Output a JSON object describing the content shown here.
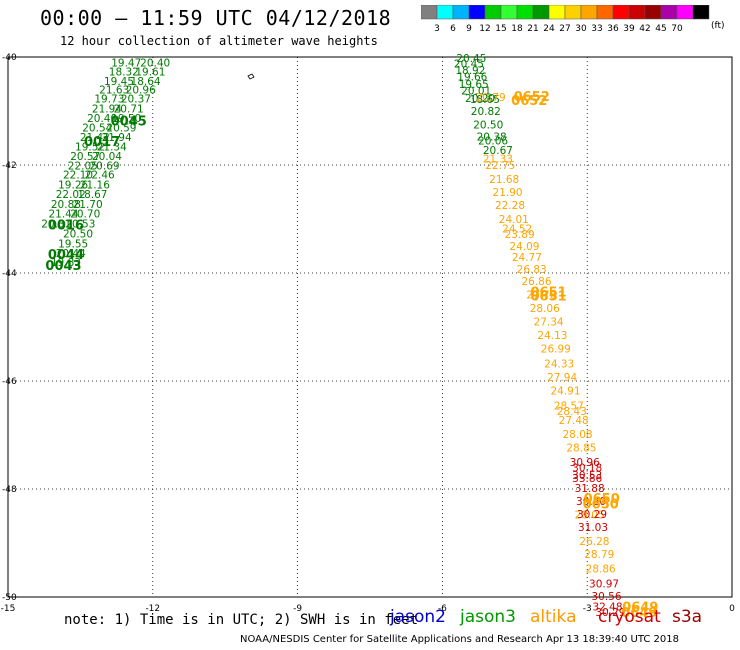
{
  "header": {
    "title": "00:00 – 11:59 UTC 04/12/2018",
    "subtitle": "12 hour collection of altimeter wave heights"
  },
  "legend": {
    "colors": [
      "#808080",
      "#00ffff",
      "#00b3ff",
      "#0000ff",
      "#00cc00",
      "#33ff33",
      "#00e000",
      "#009900",
      "#ffff00",
      "#ffd000",
      "#ffa500",
      "#ff6600",
      "#ff0000",
      "#cc0000",
      "#990000",
      "#aa00aa",
      "#ff00ff",
      "#000000"
    ],
    "tick_labels": [
      "3",
      "6",
      "9",
      "12",
      "15",
      "18",
      "21",
      "24",
      "27",
      "30",
      "33",
      "36",
      "39",
      "42",
      "45",
      "70"
    ],
    "unit": "(ft)"
  },
  "footer": {
    "note": "note: 1) Time is in UTC; 2) SWH is in feet",
    "satellites": [
      {
        "name": "jason2",
        "color": "#0000cc"
      },
      {
        "name": "jason3",
        "color": "#009900"
      },
      {
        "name": "altika",
        "color": "#ff9900"
      },
      {
        "name": "cryosat",
        "color": "#cc0000"
      },
      {
        "name": "s3a",
        "color": "#990000"
      }
    ],
    "credit": "NOAA/NESDIS Center for Satellite Applications and Research    Apr 13 18:39:40 UTC 2018"
  },
  "chart_data": {
    "type": "scatter",
    "title": "00:00 – 11:59 UTC 04/12/2018",
    "xlim": [
      -15,
      0
    ],
    "ylim": [
      -50,
      -40
    ],
    "x_ticks": [
      "-15",
      "-12",
      "-9",
      "-6",
      "-3",
      "0"
    ],
    "y_ticks": [
      "-40",
      "-42",
      "-44",
      "-46",
      "-48",
      "-50"
    ],
    "grid": true,
    "series": [
      {
        "name": "jason3",
        "color": "#007a00",
        "points": [
          {
            "x": -12.55,
            "y": -40.1,
            "label": "19.47"
          },
          {
            "x": -11.95,
            "y": -40.1,
            "label": "20.40"
          },
          {
            "x": -12.6,
            "y": -40.27,
            "label": "18.32"
          },
          {
            "x": -12.05,
            "y": -40.27,
            "label": "19.61"
          },
          {
            "x": -12.7,
            "y": -40.44,
            "label": "19.45"
          },
          {
            "x": -12.15,
            "y": -40.44,
            "label": "18.64"
          },
          {
            "x": -12.8,
            "y": -40.6,
            "label": "21.63"
          },
          {
            "x": -12.25,
            "y": -40.6,
            "label": "20.96"
          },
          {
            "x": -12.9,
            "y": -40.77,
            "label": "19.73"
          },
          {
            "x": -12.35,
            "y": -40.77,
            "label": "20.37"
          },
          {
            "x": -12.95,
            "y": -40.95,
            "label": "21.94"
          },
          {
            "x": -12.5,
            "y": -40.95,
            "label": "20.71"
          },
          {
            "x": -13.05,
            "y": -41.13,
            "label": "20.40"
          },
          {
            "x": -12.55,
            "y": -41.13,
            "label": "19.50"
          },
          {
            "x": -13.15,
            "y": -41.31,
            "label": "20.54"
          },
          {
            "x": -12.65,
            "y": -41.31,
            "label": "20.59"
          },
          {
            "x": -13.2,
            "y": -41.48,
            "label": "21.42"
          },
          {
            "x": -12.75,
            "y": -41.48,
            "label": "21.94"
          },
          {
            "x": -13.3,
            "y": -41.66,
            "label": "19.52"
          },
          {
            "x": -12.85,
            "y": -41.66,
            "label": "21.34"
          },
          {
            "x": -13.4,
            "y": -41.83,
            "label": "20.57"
          },
          {
            "x": -12.95,
            "y": -41.83,
            "label": "20.04"
          },
          {
            "x": -13.45,
            "y": -42.01,
            "label": "22.05"
          },
          {
            "x": -13.0,
            "y": -42.01,
            "label": "20.69"
          },
          {
            "x": -13.55,
            "y": -42.18,
            "label": "22.10"
          },
          {
            "x": -13.1,
            "y": -42.18,
            "label": "22.46"
          },
          {
            "x": -13.65,
            "y": -42.36,
            "label": "19.26"
          },
          {
            "x": -13.2,
            "y": -42.36,
            "label": "21.16"
          },
          {
            "x": -13.7,
            "y": -42.54,
            "label": "22.02"
          },
          {
            "x": -13.25,
            "y": -42.54,
            "label": "18.67"
          },
          {
            "x": -13.8,
            "y": -42.72,
            "label": "20.88"
          },
          {
            "x": -13.35,
            "y": -42.72,
            "label": "21.70"
          },
          {
            "x": -13.85,
            "y": -42.9,
            "label": "21.44"
          },
          {
            "x": -13.4,
            "y": -42.9,
            "label": "20.70"
          },
          {
            "x": -14.0,
            "y": -43.08,
            "label": "20.31"
          },
          {
            "x": -13.5,
            "y": -43.08,
            "label": "20.53"
          },
          {
            "x": -13.55,
            "y": -43.27,
            "label": "20.50"
          },
          {
            "x": -13.65,
            "y": -43.45,
            "label": "19.55"
          },
          {
            "x": -13.7,
            "y": -43.63,
            "label": "20.44"
          },
          {
            "x": -13.8,
            "y": -43.8,
            "label": "19.83"
          },
          {
            "x": -5.4,
            "y": -40.02,
            "label": "20.45"
          },
          {
            "x": -5.45,
            "y": -40.12,
            "label": "20.45"
          },
          {
            "x": -5.42,
            "y": -40.24,
            "label": "18.92"
          },
          {
            "x": -5.38,
            "y": -40.36,
            "label": "19.66"
          },
          {
            "x": -5.35,
            "y": -40.5,
            "label": "19.65"
          },
          {
            "x": -5.3,
            "y": -40.62,
            "label": "20.01"
          },
          {
            "x": -5.22,
            "y": -40.76,
            "label": "20.20"
          },
          {
            "x": -5.12,
            "y": -40.78,
            "label": "18.65"
          },
          {
            "x": -5.1,
            "y": -41.0,
            "label": "20.82"
          },
          {
            "x": -5.05,
            "y": -41.25,
            "label": "20.50"
          },
          {
            "x": -4.98,
            "y": -41.47,
            "label": "20.38"
          },
          {
            "x": -4.95,
            "y": -41.55,
            "label": "20.06"
          },
          {
            "x": -4.85,
            "y": -41.72,
            "label": "20.67"
          }
        ]
      },
      {
        "name": "altika",
        "color": "#ffa500",
        "points": [
          {
            "x": -5.0,
            "y": -40.74,
            "label": "20.79"
          },
          {
            "x": -4.85,
            "y": -41.88,
            "label": "21.33"
          },
          {
            "x": -4.8,
            "y": -42.0,
            "label": "22.75"
          },
          {
            "x": -4.72,
            "y": -42.26,
            "label": "21.68"
          },
          {
            "x": -4.65,
            "y": -42.5,
            "label": "21.90"
          },
          {
            "x": -4.6,
            "y": -42.74,
            "label": "22.28"
          },
          {
            "x": -4.52,
            "y": -43.0,
            "label": "24.01"
          },
          {
            "x": -4.45,
            "y": -43.18,
            "label": "24.52"
          },
          {
            "x": -4.4,
            "y": -43.28,
            "label": "23.89"
          },
          {
            "x": -4.3,
            "y": -43.5,
            "label": "24.09"
          },
          {
            "x": -4.25,
            "y": -43.7,
            "label": "24.77"
          },
          {
            "x": -4.15,
            "y": -43.93,
            "label": "26.83"
          },
          {
            "x": -4.05,
            "y": -44.15,
            "label": "26.86"
          },
          {
            "x": -3.95,
            "y": -44.4,
            "label": "27.78"
          },
          {
            "x": -3.88,
            "y": -44.65,
            "label": "28.06"
          },
          {
            "x": -3.8,
            "y": -44.9,
            "label": "27.34"
          },
          {
            "x": -3.72,
            "y": -45.15,
            "label": "24.13"
          },
          {
            "x": -3.65,
            "y": -45.4,
            "label": "26.99"
          },
          {
            "x": -3.58,
            "y": -45.68,
            "label": "24.33"
          },
          {
            "x": -3.52,
            "y": -45.93,
            "label": "27.94"
          },
          {
            "x": -3.45,
            "y": -46.18,
            "label": "24.91"
          },
          {
            "x": -3.38,
            "y": -46.45,
            "label": "28.57"
          },
          {
            "x": -3.32,
            "y": -46.56,
            "label": "28.43"
          },
          {
            "x": -3.28,
            "y": -46.72,
            "label": "27.48"
          },
          {
            "x": -3.2,
            "y": -46.98,
            "label": "28.08"
          },
          {
            "x": -3.12,
            "y": -47.23,
            "label": "28.85"
          },
          {
            "x": -2.95,
            "y": -48.47,
            "label": "28.05"
          },
          {
            "x": -2.85,
            "y": -48.96,
            "label": "26.28"
          },
          {
            "x": -2.75,
            "y": -49.2,
            "label": "28.79"
          },
          {
            "x": -2.72,
            "y": -49.47,
            "label": "28.86"
          }
        ]
      },
      {
        "name": "cryosat",
        "color": "#cc0000",
        "points": [
          {
            "x": -3.05,
            "y": -47.5,
            "label": "30.96"
          },
          {
            "x": -3.0,
            "y": -47.6,
            "label": "30.18"
          },
          {
            "x": -3.0,
            "y": -47.74,
            "label": "30.53"
          },
          {
            "x": -3.0,
            "y": -47.8,
            "label": "33.86"
          },
          {
            "x": -2.95,
            "y": -47.98,
            "label": "31.88"
          },
          {
            "x": -2.92,
            "y": -48.22,
            "label": "30.20"
          },
          {
            "x": -2.9,
            "y": -48.46,
            "label": "30.29"
          },
          {
            "x": -2.88,
            "y": -48.7,
            "label": "31.03"
          },
          {
            "x": -2.65,
            "y": -49.75,
            "label": "30.97"
          },
          {
            "x": -2.6,
            "y": -49.98,
            "label": "30.56"
          },
          {
            "x": -2.58,
            "y": -50.18,
            "label": "32.48"
          },
          {
            "x": -2.52,
            "y": -50.28,
            "label": "30.29"
          }
        ]
      }
    ],
    "time_labels": [
      {
        "x": -12.5,
        "y": -41.18,
        "text": "0045",
        "color": "#007a00"
      },
      {
        "x": -13.05,
        "y": -41.56,
        "text": "0017",
        "color": "#007a00"
      },
      {
        "x": -13.8,
        "y": -43.1,
        "text": "0016",
        "color": "#007a00"
      },
      {
        "x": -13.8,
        "y": -43.65,
        "text": "0044",
        "color": "#007a00"
      },
      {
        "x": -13.85,
        "y": -43.85,
        "text": "0043",
        "color": "#007a00"
      },
      {
        "x": -4.15,
        "y": -40.72,
        "text": "0652",
        "color": "#ffa500"
      },
      {
        "x": -4.2,
        "y": -40.8,
        "text": "0652",
        "color": "#ffa500"
      },
      {
        "x": -3.8,
        "y": -44.34,
        "text": "0651",
        "color": "#ffa500"
      },
      {
        "x": -3.8,
        "y": -44.42,
        "text": "0651",
        "color": "#ffa500"
      },
      {
        "x": -2.7,
        "y": -48.17,
        "text": "0650",
        "color": "#ffa500"
      },
      {
        "x": -2.72,
        "y": -48.27,
        "text": "0650",
        "color": "#ffa500"
      },
      {
        "x": -1.9,
        "y": -50.18,
        "text": "0649",
        "color": "#ffa500"
      },
      {
        "x": -1.92,
        "y": -50.28,
        "text": "0649",
        "color": "#ffa500"
      }
    ]
  }
}
